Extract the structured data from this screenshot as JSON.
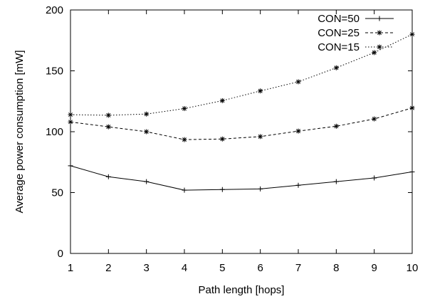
{
  "chart_data": {
    "type": "line",
    "x": [
      1,
      2,
      3,
      4,
      5,
      6,
      7,
      8,
      9,
      10
    ],
    "xlabel": "Path length [hops]",
    "ylabel": "Average power consumption [mW]",
    "xlim": [
      1,
      10
    ],
    "ylim": [
      0,
      200
    ],
    "xticks": [
      "1",
      "2",
      "3",
      "4",
      "5",
      "6",
      "7",
      "8",
      "9",
      "10"
    ],
    "yticks": [
      "0",
      "50",
      "100",
      "150",
      "200"
    ],
    "grid": false,
    "legend_position": "top-right",
    "series": [
      {
        "name": "CON=50",
        "style": "solid",
        "marker": "plus",
        "values": [
          72,
          63,
          59,
          52,
          52.5,
          53,
          56,
          59,
          62,
          67
        ]
      },
      {
        "name": "CON=25",
        "style": "dashed",
        "marker": "star",
        "values": [
          108,
          104,
          100,
          93.5,
          94,
          96,
          100.5,
          104.5,
          110.5,
          119.5
        ]
      },
      {
        "name": "CON=15",
        "style": "dotted",
        "marker": "star",
        "values": [
          114,
          113.5,
          114.5,
          119,
          125.5,
          133.5,
          141,
          152.5,
          165,
          180
        ]
      }
    ]
  }
}
